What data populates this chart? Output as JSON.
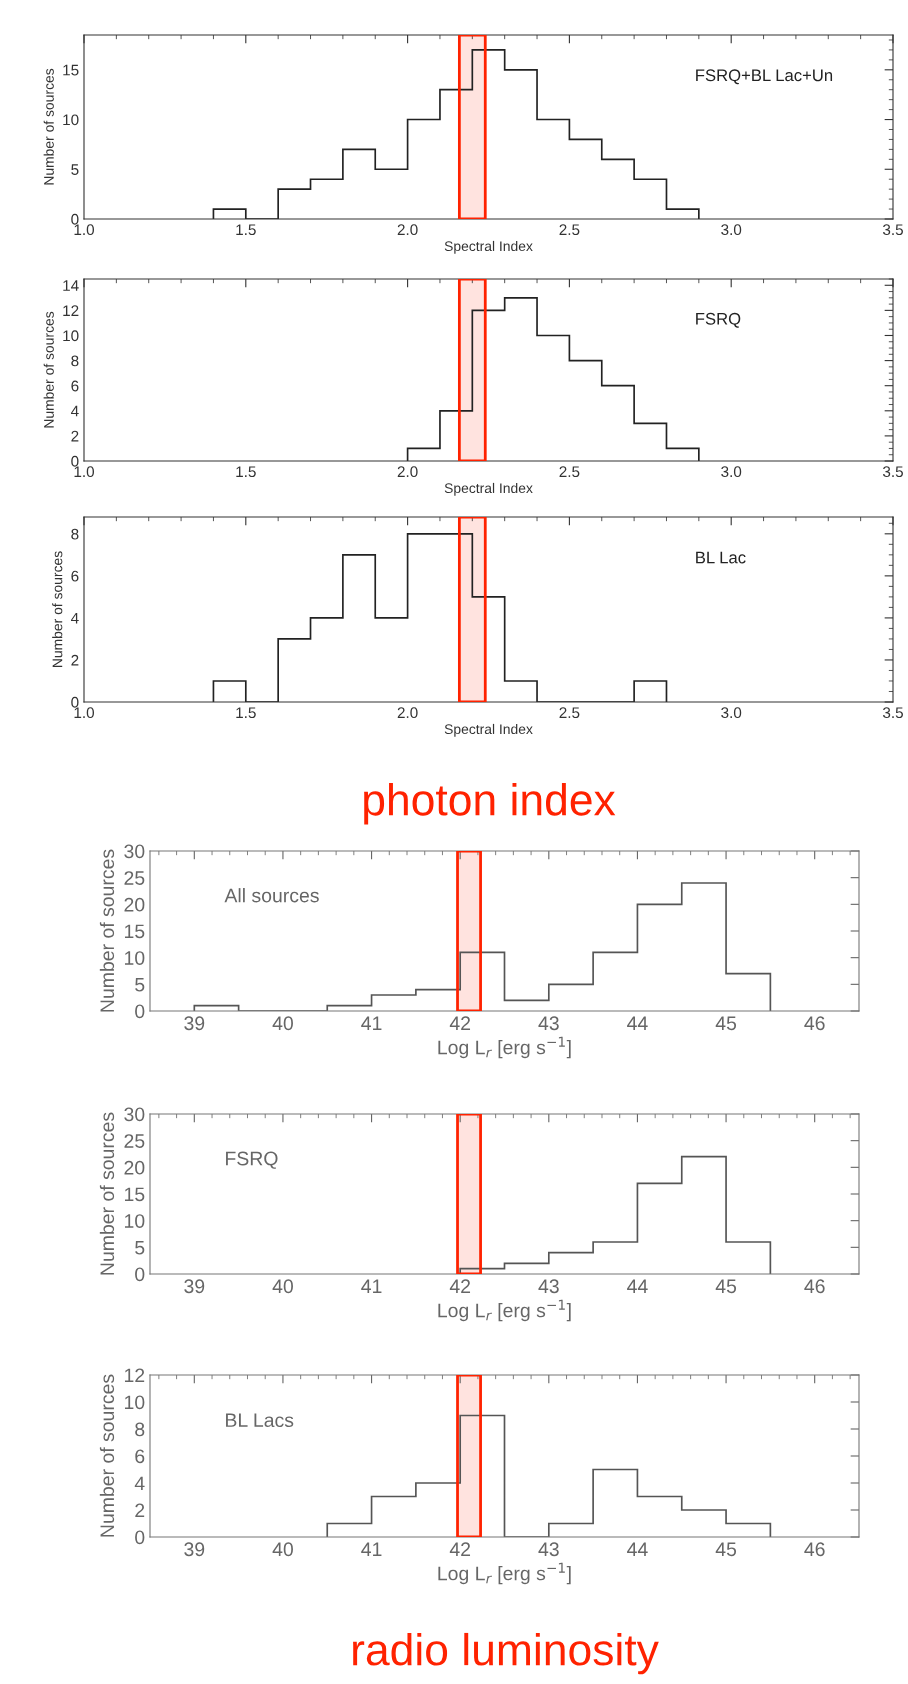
{
  "chart_data": [
    {
      "type": "histogram",
      "xlabel": "Spectral Index",
      "ylabel": "Number of sources",
      "color": "#222222",
      "bins": [
        1.4,
        1.5,
        1.6,
        1.7,
        1.8,
        1.9,
        2.0,
        2.1,
        2.2,
        2.3,
        2.4,
        2.5,
        2.6,
        2.7,
        2.8,
        2.9
      ],
      "values": [
        1,
        0,
        3,
        4,
        7,
        5,
        10,
        13,
        17,
        15,
        10,
        8,
        6,
        4,
        1
      ],
      "xlim": [
        1.0,
        3.5
      ],
      "xticks": [
        {
          "value": 1.0,
          "label": "1.0"
        },
        1.5,
        {
          "value": 2.0,
          "label": "2.0"
        },
        2.5,
        {
          "value": 3.0,
          "label": "3.0"
        },
        3.5
      ],
      "ylim": [
        0,
        18.5
      ],
      "yticks": [
        0,
        5,
        10,
        15
      ],
      "annotations": [
        "FSRQ+BL Lac+Un"
      ],
      "bands": [
        {
          "axis": "x",
          "from": 2.16,
          "to": 2.24,
          "color": "#ff2200"
        }
      ]
    },
    {
      "type": "histogram",
      "xlabel": "Spectral Index",
      "ylabel": "Number of sources",
      "color": "#222222",
      "bins": [
        2.0,
        2.1,
        2.2,
        2.3,
        2.4,
        2.5,
        2.6,
        2.7,
        2.8,
        2.9
      ],
      "values": [
        1,
        4,
        12,
        13,
        10,
        8,
        6,
        3,
        1
      ],
      "xlim": [
        1.0,
        3.5
      ],
      "xticks": [
        {
          "value": 1.0,
          "label": "1.0"
        },
        1.5,
        {
          "value": 2.0,
          "label": "2.0"
        },
        2.5,
        {
          "value": 3.0,
          "label": "3.0"
        },
        3.5
      ],
      "ylim": [
        0,
        14.5
      ],
      "yticks": [
        0,
        2,
        4,
        6,
        8,
        10,
        12,
        14
      ],
      "annotations": [
        "FSRQ"
      ],
      "bands": [
        {
          "axis": "x",
          "from": 2.16,
          "to": 2.24,
          "color": "#ff2200"
        }
      ]
    },
    {
      "type": "histogram",
      "xlabel": "Spectral Index",
      "ylabel": "Number of sources",
      "color": "#222222",
      "bins": [
        1.4,
        1.5,
        1.6,
        1.7,
        1.8,
        1.9,
        2.0,
        2.1,
        2.2,
        2.3,
        2.4,
        2.5,
        2.6,
        2.7,
        2.8
      ],
      "values": [
        1,
        0,
        3,
        4,
        7,
        4,
        8,
        8,
        5,
        1,
        0,
        0,
        0,
        1
      ],
      "xlim": [
        1.0,
        3.5
      ],
      "xticks": [
        {
          "value": 1.0,
          "label": "1.0"
        },
        1.5,
        {
          "value": 2.0,
          "label": "2.0"
        },
        2.5,
        {
          "value": 3.0,
          "label": "3.0"
        },
        3.5
      ],
      "ylim": [
        0,
        8.8
      ],
      "yticks": [
        0,
        2,
        4,
        6,
        8
      ],
      "annotations": [
        "BL Lac",
        "photon index"
      ],
      "bands": [
        {
          "axis": "x",
          "from": 2.16,
          "to": 2.24,
          "color": "#ff2200"
        }
      ]
    },
    {
      "type": "histogram",
      "xlabel": "Log L$_{r}$ [erg s$^{−1}$]",
      "ylabel": "Number of sources",
      "color": "#555555",
      "bins": [
        39,
        39.5,
        40,
        40.5,
        41,
        41.5,
        42,
        42.5,
        43,
        43.5,
        44,
        44.5,
        45,
        45.5
      ],
      "values": [
        1,
        0,
        0,
        1,
        3,
        4,
        11,
        2,
        5,
        11,
        20,
        24,
        7
      ],
      "xlim": [
        38.5,
        46.5
      ],
      "xticks": [
        39,
        40,
        41,
        42,
        43,
        44,
        45,
        46
      ],
      "ylim": [
        0,
        30
      ],
      "yticks": [
        0,
        5,
        10,
        15,
        20,
        25,
        30
      ],
      "annotations": [
        "All sources"
      ],
      "bands": [
        {
          "axis": "x",
          "from": 41.97,
          "to": 42.23,
          "color": "#ff2200"
        }
      ]
    },
    {
      "type": "histogram",
      "xlabel": "Log L$_{r}$ [erg s$^{−1}$]",
      "ylabel": "Number of sources",
      "color": "#555555",
      "bins": [
        42,
        42.5,
        43,
        43.5,
        44,
        44.5,
        45,
        45.5
      ],
      "values": [
        1,
        2,
        4,
        6,
        17,
        22,
        6
      ],
      "xlim": [
        38.5,
        46.5
      ],
      "xticks": [
        39,
        40,
        41,
        42,
        43,
        44,
        45,
        46
      ],
      "ylim": [
        0,
        30
      ],
      "yticks": [
        0,
        5,
        10,
        15,
        20,
        25,
        30
      ],
      "annotations": [
        "FSRQ"
      ],
      "bands": [
        {
          "axis": "x",
          "from": 41.97,
          "to": 42.23,
          "color": "#ff2200"
        }
      ]
    },
    {
      "type": "histogram",
      "xlabel": "Log L$_{r}$ [erg s$^{−1}$]",
      "ylabel": "Number of sources",
      "color": "#555555",
      "bins": [
        40.5,
        41,
        41.5,
        42,
        42.5,
        43,
        43.5,
        44,
        44.5,
        45,
        45.5
      ],
      "values": [
        1,
        3,
        4,
        9,
        0,
        1,
        5,
        3,
        2,
        1
      ],
      "xlim": [
        38.5,
        46.5
      ],
      "xticks": [
        39,
        40,
        41,
        42,
        43,
        44,
        45,
        46
      ],
      "ylim": [
        0,
        12
      ],
      "yticks": [
        0,
        2,
        4,
        6,
        8,
        10,
        12
      ],
      "annotations": [
        "BL Lacs",
        "radio luminosity"
      ],
      "bands": [
        {
          "axis": "x",
          "from": 41.97,
          "to": 42.23,
          "color": "#ff2200"
        }
      ]
    }
  ]
}
